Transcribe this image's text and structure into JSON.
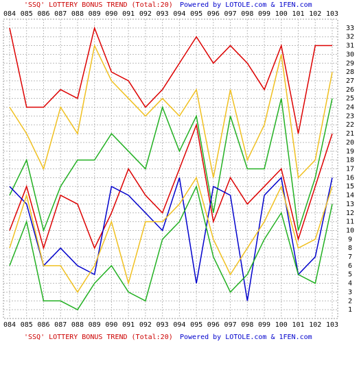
{
  "chart_data": {
    "type": "line",
    "title": "'SSQ' LOTTERY BONUS TREND (Total:20)",
    "subtitle": "Powered by LOTOLE.com & 1FEN.com",
    "categories": [
      "084",
      "085",
      "086",
      "087",
      "088",
      "089",
      "090",
      "091",
      "092",
      "093",
      "094",
      "095",
      "096",
      "097",
      "098",
      "099",
      "100",
      "101",
      "102",
      "103"
    ],
    "ylim": [
      0,
      34
    ],
    "yticks": [
      1,
      2,
      3,
      4,
      5,
      6,
      7,
      8,
      9,
      10,
      11,
      12,
      13,
      14,
      15,
      16,
      17,
      18,
      19,
      20,
      21,
      22,
      23,
      24,
      25,
      26,
      27,
      28,
      29,
      30,
      31,
      32,
      33
    ],
    "grid": true,
    "series": [
      {
        "color": "#dd0000",
        "values": [
          33,
          24,
          24,
          26,
          25,
          33,
          28,
          27,
          24,
          26,
          29,
          32,
          29,
          31,
          29,
          26,
          31,
          21,
          31,
          31
        ]
      },
      {
        "color": "#f0c020",
        "values": [
          24,
          21,
          17,
          24,
          21,
          31,
          27,
          25,
          23,
          25,
          23,
          26,
          16,
          26,
          18,
          22,
          30,
          16,
          18,
          28
        ]
      },
      {
        "color": "#22b022",
        "values": [
          14,
          18,
          10,
          15,
          18,
          18,
          21,
          19,
          17,
          24,
          19,
          23,
          12,
          23,
          17,
          17,
          25,
          10,
          16,
          25
        ]
      },
      {
        "color": "#dd0000",
        "values": [
          10,
          15,
          8,
          14,
          13,
          8,
          12,
          17,
          14,
          12,
          17,
          22,
          11,
          16,
          13,
          15,
          17,
          9,
          15,
          21
        ]
      },
      {
        "color": "#0000cc",
        "values": [
          15,
          13,
          6,
          8,
          6,
          5,
          15,
          14,
          12,
          10,
          16,
          4,
          15,
          14,
          2,
          14,
          16,
          5,
          7,
          16
        ]
      },
      {
        "color": "#f0c020",
        "values": [
          8,
          14,
          6,
          6,
          3,
          6,
          11,
          4,
          11,
          11,
          13,
          16,
          9,
          5,
          8,
          11,
          15,
          8,
          9,
          15
        ]
      },
      {
        "color": "#22b022",
        "values": [
          6,
          11,
          2,
          2,
          1,
          4,
          6,
          3,
          2,
          9,
          11,
          15,
          7,
          3,
          5,
          9,
          12,
          5,
          4,
          13
        ]
      }
    ]
  }
}
